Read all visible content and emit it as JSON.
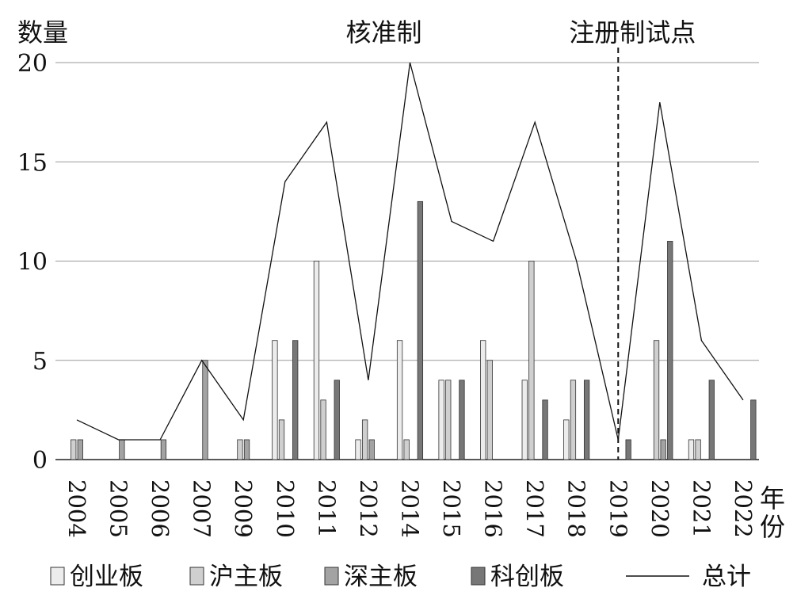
{
  "chart_data": {
    "type": "bar",
    "ylabel": "数量",
    "xlabel": "年份",
    "ylim": [
      0,
      20
    ],
    "yticks": [
      0,
      5,
      10,
      15,
      20
    ],
    "grid": true,
    "legend_position": "bottom",
    "categories": [
      "2004",
      "2005",
      "2006",
      "2007",
      "2009",
      "2010",
      "2011",
      "2012",
      "2014",
      "2015",
      "2016",
      "2017",
      "2018",
      "2019",
      "2020",
      "2021",
      "2022"
    ],
    "series": [
      {
        "name": "创业板",
        "kind": "bar",
        "color": "#ececec",
        "values": [
          0,
          0,
          0,
          0,
          0,
          6,
          10,
          1,
          6,
          4,
          6,
          4,
          2,
          0,
          0,
          1,
          0
        ]
      },
      {
        "name": "沪主板",
        "kind": "bar",
        "color": "#cfcfcf",
        "values": [
          1,
          0,
          0,
          0,
          1,
          2,
          3,
          2,
          1,
          4,
          5,
          10,
          4,
          0,
          6,
          1,
          0
        ]
      },
      {
        "name": "深主板",
        "kind": "bar",
        "color": "#a3a3a3",
        "values": [
          1,
          1,
          1,
          5,
          1,
          0,
          0,
          1,
          0,
          0,
          0,
          0,
          0,
          0,
          1,
          0,
          0
        ]
      },
      {
        "name": "科创板",
        "kind": "bar",
        "color": "#777777",
        "values": [
          0,
          0,
          0,
          0,
          0,
          6,
          4,
          0,
          13,
          4,
          0,
          3,
          4,
          1,
          11,
          4,
          3
        ]
      },
      {
        "name": "总计",
        "kind": "line",
        "color": "#111111",
        "values": [
          2,
          1,
          1,
          5,
          2,
          14,
          17,
          4,
          20,
          12,
          11,
          17,
          10,
          1,
          18,
          6,
          3
        ]
      }
    ],
    "annotations": [
      {
        "text": "核准制",
        "at_category": "2014"
      },
      {
        "text": "注册制试点",
        "at_category": "2019",
        "dashed_line": true
      }
    ]
  }
}
